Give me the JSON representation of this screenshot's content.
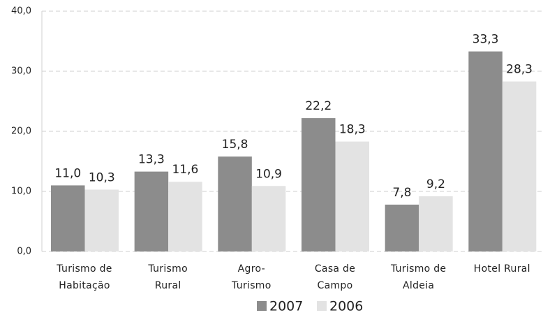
{
  "chart_data": {
    "type": "bar",
    "categories": [
      [
        "Turismo de",
        "Habitação"
      ],
      [
        "Turismo",
        "Rural"
      ],
      [
        "Agro-",
        "Turismo"
      ],
      [
        "Casa de",
        "Campo"
      ],
      [
        "Turismo de",
        "Aldeia"
      ],
      [
        "Hotel Rural"
      ]
    ],
    "series": [
      {
        "name": "2007",
        "color": "#8c8c8c",
        "values": [
          11.0,
          13.3,
          15.8,
          22.2,
          7.8,
          33.3
        ],
        "value_labels": [
          "11,0",
          "13,3",
          "15,8",
          "22,2",
          "7,8",
          "33,3"
        ]
      },
      {
        "name": "2006",
        "color": "#e3e3e3",
        "values": [
          10.3,
          11.6,
          10.9,
          18.3,
          9.2,
          28.3
        ],
        "value_labels": [
          "10,3",
          "11,6",
          "10,9",
          "18,3",
          "9,2",
          "28,3"
        ]
      }
    ],
    "ylim": [
      0,
      40
    ],
    "yticks": [
      {
        "value": 0,
        "label": "0,0"
      },
      {
        "value": 10,
        "label": "10,0"
      },
      {
        "value": 20,
        "label": "20,0"
      },
      {
        "value": 30,
        "label": "30,0"
      },
      {
        "value": 40,
        "label": "40,0"
      }
    ],
    "grid": true
  }
}
